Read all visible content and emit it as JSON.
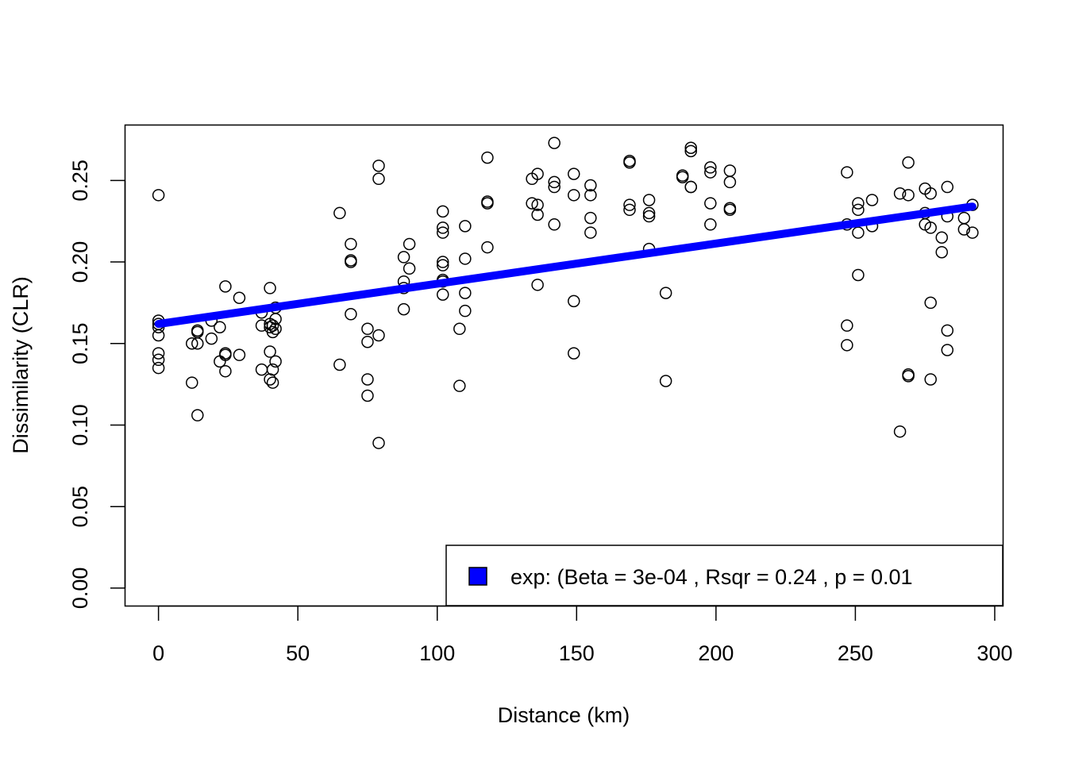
{
  "chart_data": {
    "type": "scatter",
    "xlabel": "Distance (km)",
    "ylabel": "Dissimilarity (CLR)",
    "xlim": [
      -12,
      303
    ],
    "ylim": [
      -0.011,
      0.284
    ],
    "x_ticks": [
      0,
      50,
      100,
      150,
      200,
      250,
      300
    ],
    "y_ticks": [
      0.0,
      0.05,
      0.1,
      0.15,
      0.2,
      0.25
    ],
    "x_tick_labels": [
      "0",
      "50",
      "100",
      "150",
      "200",
      "250",
      "300"
    ],
    "y_tick_labels": [
      "0.00",
      "0.05",
      "0.10",
      "0.15",
      "0.20",
      "0.25"
    ],
    "grid": false,
    "legend_position": "bottom-right",
    "legend": {
      "label": "exp: (Beta = 3e-04 , Rsqr = 0.24 , p = 0.01",
      "color": "#0000ff"
    },
    "fit_line": {
      "color": "#0000ff",
      "x": [
        0,
        292
      ],
      "y": [
        0.162,
        0.234
      ]
    },
    "points": [
      [
        0,
        0.241
      ],
      [
        0,
        0.164
      ],
      [
        0,
        0.162
      ],
      [
        0,
        0.16
      ],
      [
        0,
        0.155
      ],
      [
        0,
        0.144
      ],
      [
        0,
        0.14
      ],
      [
        0,
        0.135
      ],
      [
        12,
        0.15
      ],
      [
        12,
        0.126
      ],
      [
        14,
        0.158
      ],
      [
        14,
        0.157
      ],
      [
        14,
        0.15
      ],
      [
        14,
        0.106
      ],
      [
        19,
        0.164
      ],
      [
        19,
        0.153
      ],
      [
        22,
        0.16
      ],
      [
        22,
        0.139
      ],
      [
        24,
        0.185
      ],
      [
        24,
        0.144
      ],
      [
        24,
        0.143
      ],
      [
        24,
        0.133
      ],
      [
        29,
        0.178
      ],
      [
        29,
        0.143
      ],
      [
        37,
        0.169
      ],
      [
        37,
        0.161
      ],
      [
        37,
        0.134
      ],
      [
        40,
        0.184
      ],
      [
        40,
        0.162
      ],
      [
        40,
        0.16
      ],
      [
        40,
        0.145
      ],
      [
        40,
        0.128
      ],
      [
        41,
        0.161
      ],
      [
        41,
        0.157
      ],
      [
        41,
        0.134
      ],
      [
        41,
        0.126
      ],
      [
        42,
        0.172
      ],
      [
        42,
        0.165
      ],
      [
        42,
        0.159
      ],
      [
        42,
        0.139
      ],
      [
        65,
        0.23
      ],
      [
        65,
        0.137
      ],
      [
        69,
        0.211
      ],
      [
        69,
        0.201
      ],
      [
        69,
        0.2
      ],
      [
        69,
        0.168
      ],
      [
        75,
        0.159
      ],
      [
        75,
        0.151
      ],
      [
        75,
        0.128
      ],
      [
        75,
        0.118
      ],
      [
        79,
        0.259
      ],
      [
        79,
        0.251
      ],
      [
        79,
        0.155
      ],
      [
        79,
        0.089
      ],
      [
        88,
        0.203
      ],
      [
        88,
        0.188
      ],
      [
        88,
        0.184
      ],
      [
        88,
        0.171
      ],
      [
        90,
        0.211
      ],
      [
        90,
        0.196
      ],
      [
        102,
        0.231
      ],
      [
        102,
        0.221
      ],
      [
        102,
        0.218
      ],
      [
        102,
        0.2
      ],
      [
        102,
        0.198
      ],
      [
        102,
        0.189
      ],
      [
        102,
        0.188
      ],
      [
        102,
        0.18
      ],
      [
        108,
        0.159
      ],
      [
        108,
        0.124
      ],
      [
        110,
        0.222
      ],
      [
        110,
        0.202
      ],
      [
        110,
        0.181
      ],
      [
        110,
        0.17
      ],
      [
        118,
        0.264
      ],
      [
        118,
        0.237
      ],
      [
        118,
        0.236
      ],
      [
        118,
        0.209
      ],
      [
        134,
        0.251
      ],
      [
        134,
        0.236
      ],
      [
        136,
        0.254
      ],
      [
        136,
        0.235
      ],
      [
        136,
        0.229
      ],
      [
        136,
        0.186
      ],
      [
        142,
        0.273
      ],
      [
        142,
        0.249
      ],
      [
        142,
        0.246
      ],
      [
        142,
        0.223
      ],
      [
        149,
        0.254
      ],
      [
        149,
        0.241
      ],
      [
        149,
        0.176
      ],
      [
        149,
        0.144
      ],
      [
        155,
        0.247
      ],
      [
        155,
        0.241
      ],
      [
        155,
        0.227
      ],
      [
        155,
        0.218
      ],
      [
        169,
        0.262
      ],
      [
        169,
        0.261
      ],
      [
        169,
        0.235
      ],
      [
        169,
        0.232
      ],
      [
        176,
        0.238
      ],
      [
        176,
        0.23
      ],
      [
        176,
        0.228
      ],
      [
        176,
        0.208
      ],
      [
        182,
        0.181
      ],
      [
        182,
        0.127
      ],
      [
        188,
        0.253
      ],
      [
        188,
        0.252
      ],
      [
        191,
        0.27
      ],
      [
        191,
        0.268
      ],
      [
        191,
        0.246
      ],
      [
        191,
        0.246
      ],
      [
        198,
        0.258
      ],
      [
        198,
        0.255
      ],
      [
        198,
        0.236
      ],
      [
        198,
        0.223
      ],
      [
        205,
        0.256
      ],
      [
        205,
        0.249
      ],
      [
        205,
        0.233
      ],
      [
        205,
        0.232
      ],
      [
        247,
        0.255
      ],
      [
        247,
        0.223
      ],
      [
        247,
        0.161
      ],
      [
        247,
        0.149
      ],
      [
        251,
        0.236
      ],
      [
        251,
        0.232
      ],
      [
        251,
        0.218
      ],
      [
        251,
        0.192
      ],
      [
        256,
        0.238
      ],
      [
        256,
        0.222
      ],
      [
        266,
        0.242
      ],
      [
        266,
        0.096
      ],
      [
        269,
        0.261
      ],
      [
        269,
        0.241
      ],
      [
        269,
        0.131
      ],
      [
        269,
        0.13
      ],
      [
        275,
        0.245
      ],
      [
        275,
        0.23
      ],
      [
        275,
        0.223
      ],
      [
        277,
        0.242
      ],
      [
        277,
        0.221
      ],
      [
        277,
        0.175
      ],
      [
        277,
        0.128
      ],
      [
        281,
        0.215
      ],
      [
        281,
        0.206
      ],
      [
        283,
        0.246
      ],
      [
        283,
        0.228
      ],
      [
        283,
        0.158
      ],
      [
        283,
        0.146
      ],
      [
        289,
        0.227
      ],
      [
        289,
        0.22
      ],
      [
        292,
        0.235
      ],
      [
        292,
        0.218
      ]
    ]
  }
}
